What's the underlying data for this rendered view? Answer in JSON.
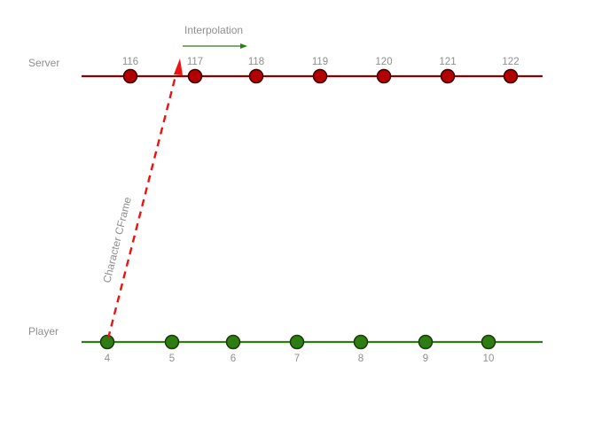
{
  "labels": {
    "server": "Server",
    "player": "Player",
    "interpolation": "Interpolation",
    "character_cframe": "Character CFrame"
  },
  "server_ticks": [
    "116",
    "117",
    "118",
    "119",
    "120",
    "121",
    "122"
  ],
  "player_ticks": [
    "4",
    "5",
    "6",
    "7",
    "8",
    "9",
    "10"
  ],
  "colors": {
    "server_line": "#8b0000",
    "server_node": "#b30000",
    "player_line": "#2e7d12",
    "player_node": "#2e7d12",
    "arrow": "#ee1111",
    "interpolation_arrow": "#2e7d12",
    "text": "#8f8f8f"
  }
}
